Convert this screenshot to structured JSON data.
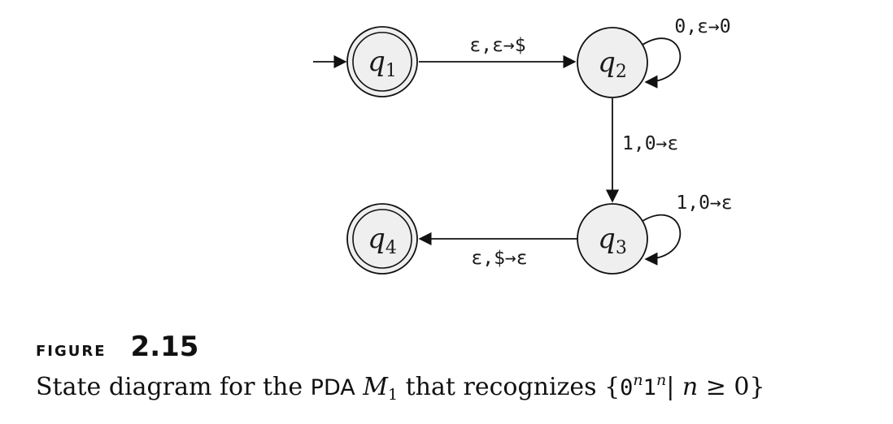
{
  "states": [
    {
      "id": "q1",
      "base": "q",
      "sub": "1",
      "accept": true,
      "start": true
    },
    {
      "id": "q2",
      "base": "q",
      "sub": "2",
      "accept": false,
      "start": false
    },
    {
      "id": "q3",
      "base": "q",
      "sub": "3",
      "accept": false,
      "start": false
    },
    {
      "id": "q4",
      "base": "q",
      "sub": "4",
      "accept": true,
      "start": false
    }
  ],
  "transitions": [
    {
      "from": "q1",
      "to": "q2",
      "label": "ε,ε→$"
    },
    {
      "from": "q2",
      "to": "q2",
      "label": "0,ε→0"
    },
    {
      "from": "q2",
      "to": "q3",
      "label": "1,0→ε"
    },
    {
      "from": "q3",
      "to": "q3",
      "label": "1,0→ε"
    },
    {
      "from": "q3",
      "to": "q4",
      "label": "ε,$→ε"
    }
  ],
  "caption": {
    "figure_word": "Figure",
    "figure_number": "2.15",
    "text_before": "State diagram for the ",
    "pda": "PDA",
    "machine": "M",
    "machine_sub": "1",
    "text_middle": " that recognizes ",
    "set_open": "{",
    "zero": "0",
    "n_sup1": "n",
    "one": "1",
    "n_sup2": "n",
    "bar": "|",
    "n_var": "n",
    "condition": " ≥ 0}"
  }
}
